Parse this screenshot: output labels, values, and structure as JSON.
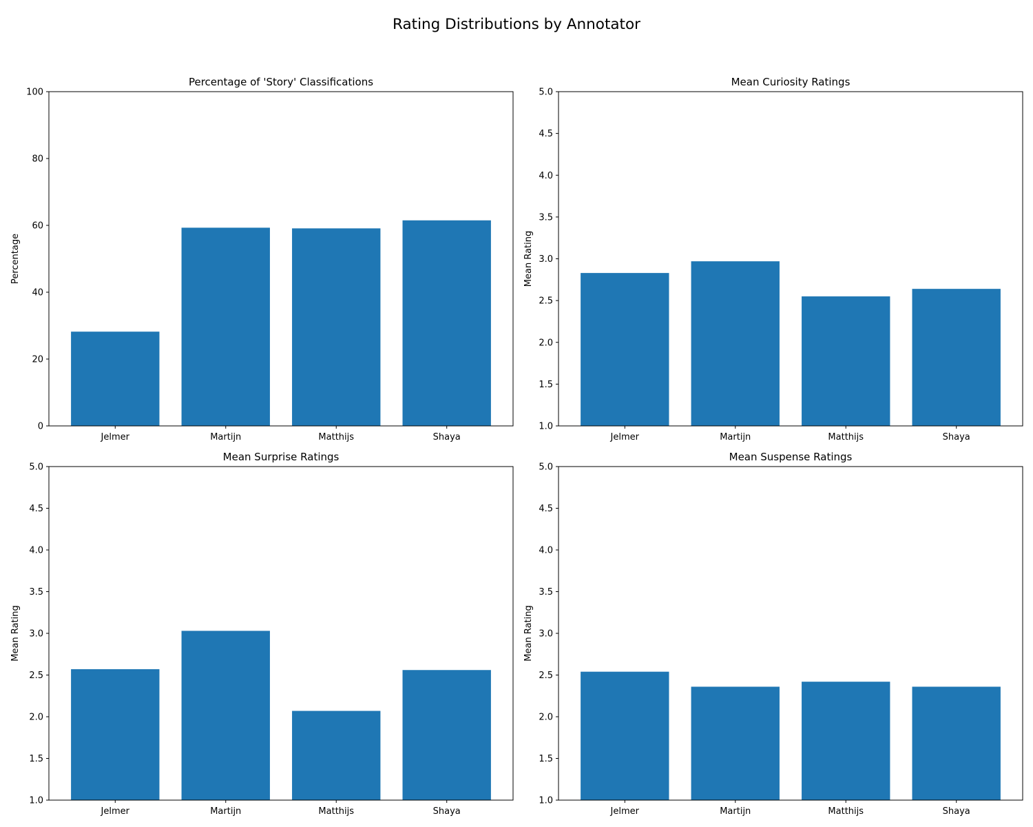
{
  "figure": {
    "title": "Rating Distributions by Annotator"
  },
  "colors": {
    "bar": "#1f77b4",
    "background": "#ffffff",
    "axis": "#000000"
  },
  "chart_data": [
    {
      "type": "bar",
      "title": "Percentage of 'Story' Classifications",
      "xlabel": "",
      "ylabel": "Percentage",
      "categories": [
        "Jelmer",
        "Martijn",
        "Matthijs",
        "Shaya"
      ],
      "values": [
        28.2,
        59.3,
        59.1,
        61.5
      ],
      "ylim": [
        0,
        100
      ],
      "yticks": [
        0,
        20,
        40,
        60,
        80,
        100
      ],
      "ytick_labels": [
        "0",
        "20",
        "40",
        "60",
        "80",
        "100"
      ],
      "grid": false,
      "legend": "none"
    },
    {
      "type": "bar",
      "title": "Mean Curiosity Ratings",
      "xlabel": "",
      "ylabel": "Mean Rating",
      "categories": [
        "Jelmer",
        "Martijn",
        "Matthijs",
        "Shaya"
      ],
      "values": [
        2.83,
        2.97,
        2.55,
        2.64
      ],
      "ylim": [
        1.0,
        5.0
      ],
      "yticks": [
        1.0,
        1.5,
        2.0,
        2.5,
        3.0,
        3.5,
        4.0,
        4.5,
        5.0
      ],
      "ytick_labels": [
        "1.0",
        "1.5",
        "2.0",
        "2.5",
        "3.0",
        "3.5",
        "4.0",
        "4.5",
        "5.0"
      ],
      "grid": false,
      "legend": "none"
    },
    {
      "type": "bar",
      "title": "Mean Surprise Ratings",
      "xlabel": "",
      "ylabel": "Mean Rating",
      "categories": [
        "Jelmer",
        "Martijn",
        "Matthijs",
        "Shaya"
      ],
      "values": [
        2.57,
        3.03,
        2.07,
        2.56
      ],
      "ylim": [
        1.0,
        5.0
      ],
      "yticks": [
        1.0,
        1.5,
        2.0,
        2.5,
        3.0,
        3.5,
        4.0,
        4.5,
        5.0
      ],
      "ytick_labels": [
        "1.0",
        "1.5",
        "2.0",
        "2.5",
        "3.0",
        "3.5",
        "4.0",
        "4.5",
        "5.0"
      ],
      "grid": false,
      "legend": "none"
    },
    {
      "type": "bar",
      "title": "Mean Suspense Ratings",
      "xlabel": "",
      "ylabel": "Mean Rating",
      "categories": [
        "Jelmer",
        "Martijn",
        "Matthijs",
        "Shaya"
      ],
      "values": [
        2.54,
        2.36,
        2.42,
        2.36
      ],
      "ylim": [
        1.0,
        5.0
      ],
      "yticks": [
        1.0,
        1.5,
        2.0,
        2.5,
        3.0,
        3.5,
        4.0,
        4.5,
        5.0
      ],
      "ytick_labels": [
        "1.0",
        "1.5",
        "2.0",
        "2.5",
        "3.0",
        "3.5",
        "4.0",
        "4.5",
        "5.0"
      ],
      "grid": false,
      "legend": "none"
    }
  ]
}
